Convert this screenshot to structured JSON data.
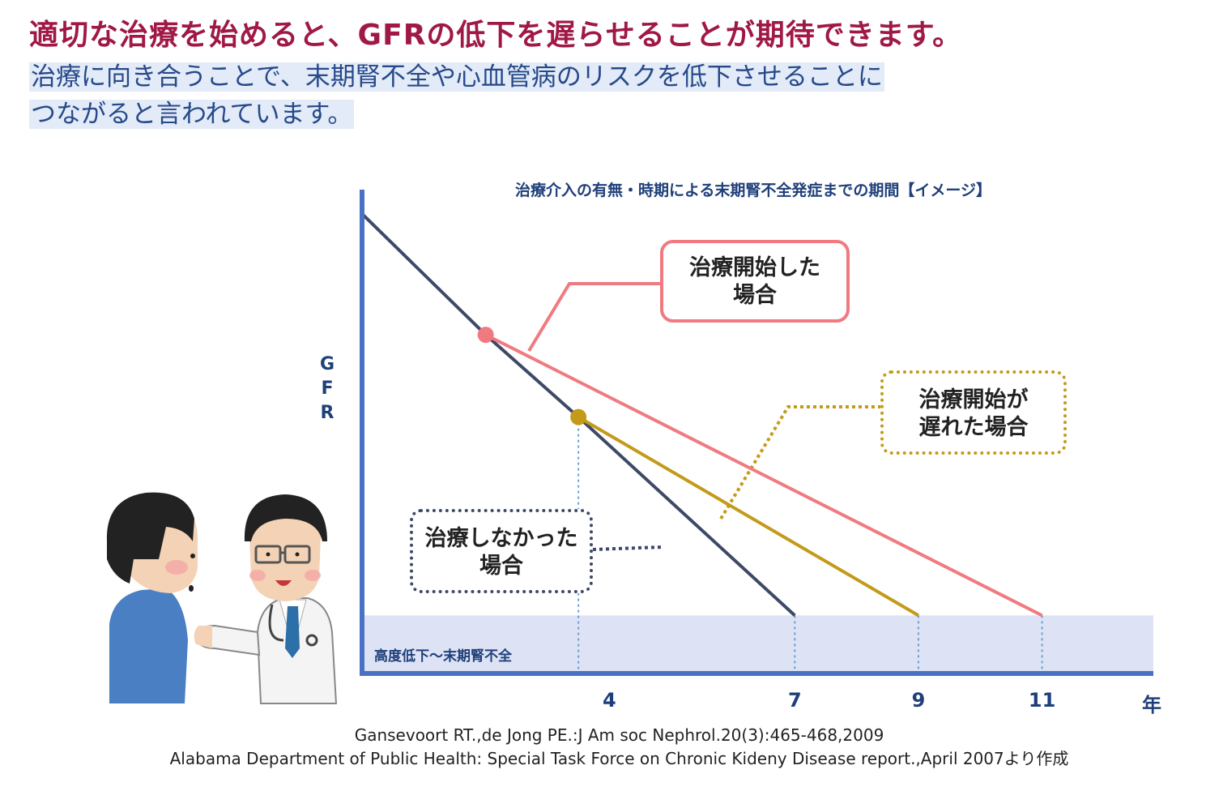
{
  "header": {
    "headline": "適切な治療を始めると、GFRの低下を遅らせることが期待できます。",
    "subline_1": "治療に向き合うことで、末期腎不全や心血管病のリスクを低下させることに",
    "subline_2": "つながると言われています。"
  },
  "chart_data": {
    "type": "line",
    "title": "治療介入の有無・時期による末期腎不全発症までの期間【イメージ】",
    "ylabel": "GFR",
    "xlabel": "年",
    "x_ticks": [
      "4",
      "7",
      "9",
      "11"
    ],
    "xlim": [
      0,
      12.8
    ],
    "ylim": [
      0,
      100
    ],
    "grid": false,
    "threshold_zone": {
      "label": "高度低下～末期腎不全",
      "y_top": 12
    },
    "series": [
      {
        "name": "治療しなかった場合",
        "points": [
          [
            0,
            95
          ],
          [
            2.0,
            70
          ],
          [
            3.5,
            53
          ],
          [
            7,
            12
          ]
        ],
        "color": "#3d4966",
        "style": "solid",
        "marker_x": null
      },
      {
        "name": "治療開始した場合",
        "points": [
          [
            2.0,
            70
          ],
          [
            11,
            12
          ]
        ],
        "color": "#f07a80",
        "style": "solid",
        "marker_x": 2.0
      },
      {
        "name": "治療開始が遅れた場合",
        "points": [
          [
            3.5,
            53
          ],
          [
            9,
            12
          ]
        ],
        "color": "#c49a1a",
        "style": "solid",
        "marker_x": 3.5
      }
    ],
    "drop_lines_x": [
      3.5,
      7,
      9,
      11
    ],
    "callouts": {
      "treated": {
        "line1": "治療開始した",
        "line2": "場合"
      },
      "late": {
        "line1": "治療開始が",
        "line2": "遅れた場合"
      },
      "none": {
        "line1": "治療しなかった",
        "line2": "場合"
      }
    }
  },
  "citations": {
    "line1": "Gansevoort RT.,de Jong PE.:J Am soc Nephrol.20(3):465-468,2009",
    "line2": "Alabama Department of Public Health: Special Task Force on Chronic Kideny Disease report.,April 2007より作成"
  },
  "colors": {
    "axis": "#4a72c4",
    "zone": "#dde3f4",
    "drop_line": "#6b9fd6"
  },
  "illustration": {
    "icons": [
      "patient-figure",
      "doctor-figure"
    ]
  }
}
